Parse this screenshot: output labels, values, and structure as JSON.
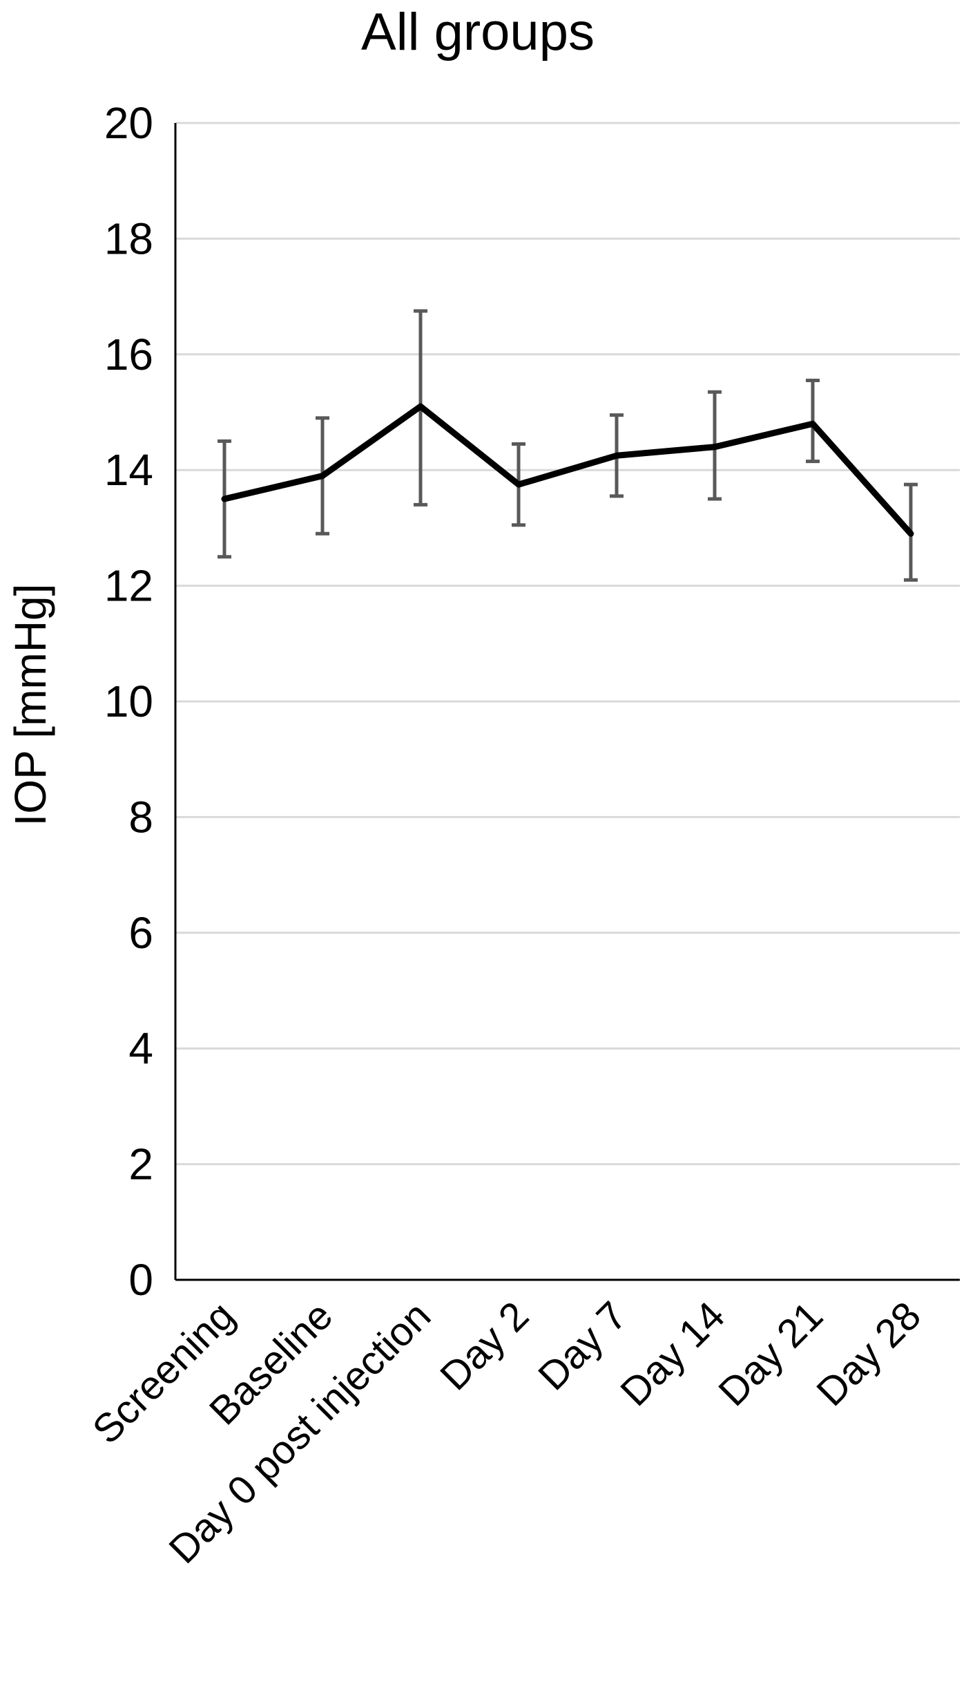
{
  "chart_data": {
    "type": "line",
    "title": "All groups",
    "xlabel": "",
    "ylabel": "IOP [mmHg]",
    "ylim": [
      0,
      20
    ],
    "yticks": [
      0,
      2,
      4,
      6,
      8,
      10,
      12,
      14,
      16,
      18,
      20
    ],
    "ytick_labels": [
      "0",
      "2",
      "4",
      "6",
      "8",
      "10",
      "12",
      "14",
      "16",
      "18",
      "20"
    ],
    "categories": [
      "Screening",
      "Baseline",
      "Day 0 post injection",
      "Day 2",
      "Day 7",
      "Day 14",
      "Day 21",
      "Day 28"
    ],
    "series": [
      {
        "values": [
          13.5,
          13.9,
          15.1,
          13.75,
          14.25,
          14.4,
          14.8,
          12.9
        ],
        "error_low": [
          12.5,
          12.9,
          13.4,
          13.05,
          13.55,
          13.5,
          14.15,
          12.1
        ],
        "error_high": [
          14.5,
          14.9,
          16.75,
          14.45,
          14.95,
          15.35,
          15.55,
          13.75
        ]
      }
    ],
    "grid": true,
    "colors": {
      "line": "#000000",
      "error_bar": "#595959",
      "grid": "#d9d9d9",
      "axis": "#000000"
    }
  }
}
